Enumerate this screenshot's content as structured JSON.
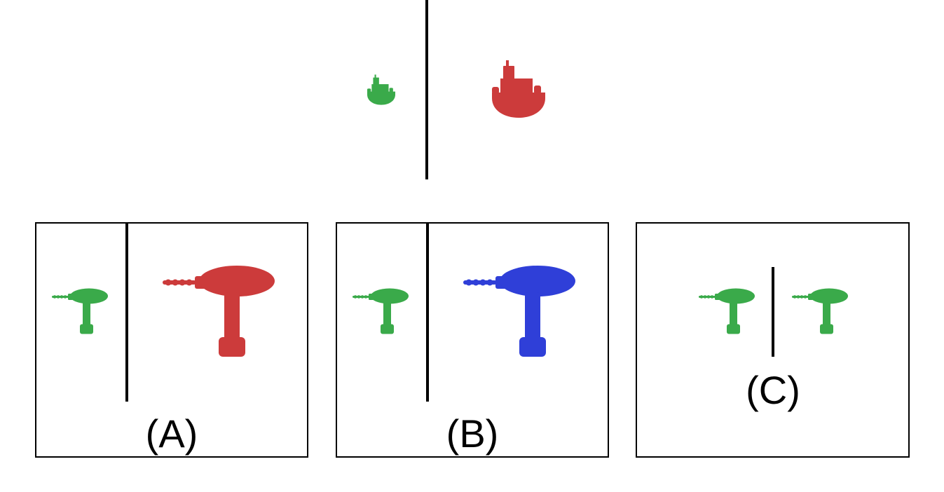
{
  "colors": {
    "green": "#3aaa4a",
    "red": "#cc3b3b",
    "blue": "#2f3fd8",
    "divider": "#000000"
  },
  "example": {
    "left_object": {
      "icon": "boat-icon",
      "color": "green",
      "size": "small"
    },
    "right_object": {
      "icon": "boat-icon",
      "color": "red",
      "size": "large"
    }
  },
  "options": [
    {
      "label": "(A)",
      "left_object": {
        "icon": "drill-icon",
        "color": "green",
        "size": "small"
      },
      "right_object": {
        "icon": "drill-icon",
        "color": "red",
        "size": "large"
      }
    },
    {
      "label": "(B)",
      "left_object": {
        "icon": "drill-icon",
        "color": "green",
        "size": "small"
      },
      "right_object": {
        "icon": "drill-icon",
        "color": "blue",
        "size": "large"
      }
    },
    {
      "label": "(C)",
      "left_object": {
        "icon": "drill-icon",
        "color": "green",
        "size": "small"
      },
      "right_object": {
        "icon": "drill-icon",
        "color": "green",
        "size": "small"
      }
    }
  ]
}
